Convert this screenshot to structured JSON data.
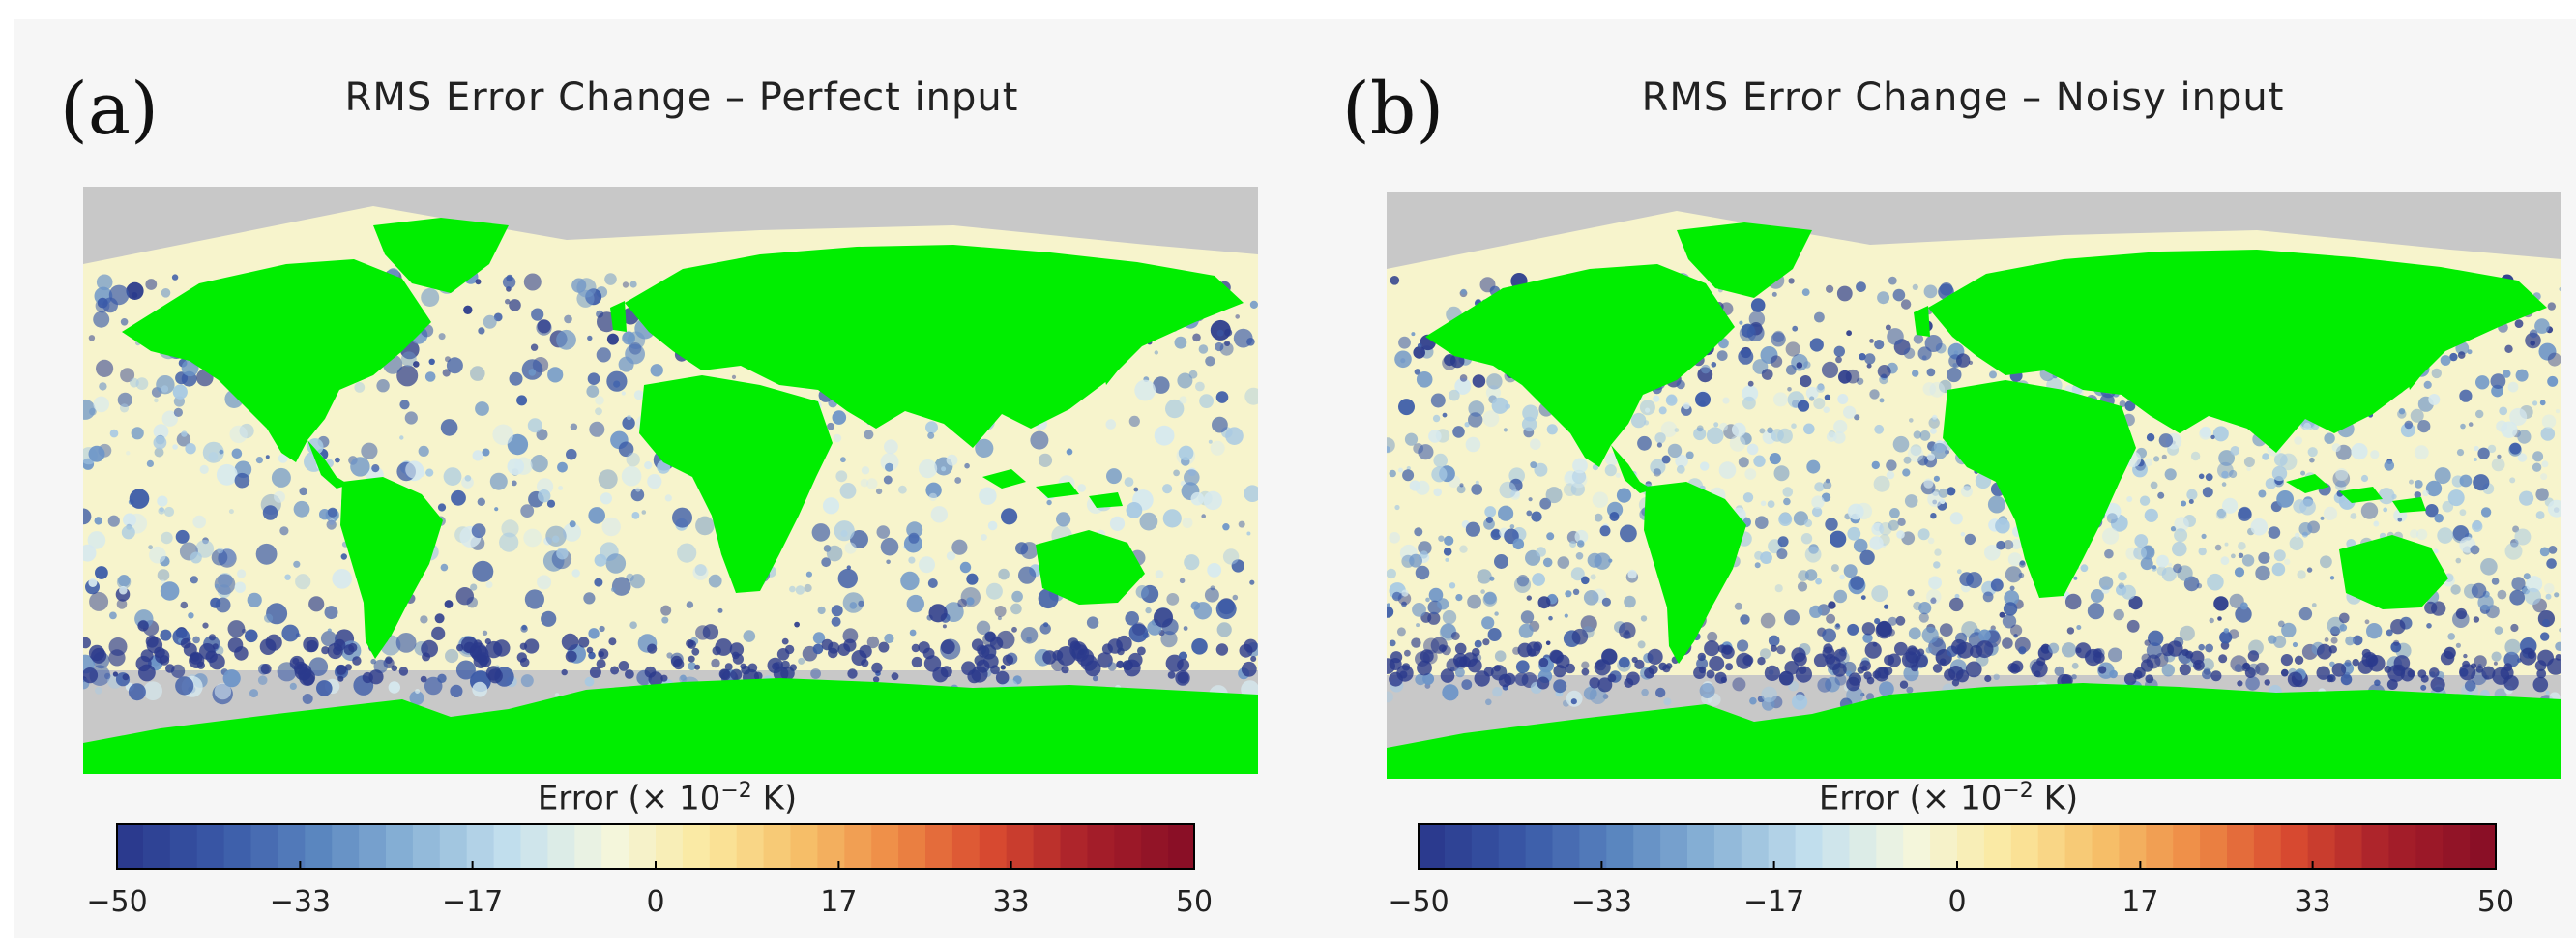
{
  "figure": {
    "panels": [
      {
        "letter": "(a)",
        "title": "RMS Error Change – Perfect input",
        "colorbar": {
          "label_prefix": "Error (× 10",
          "label_exp": "−2",
          "label_suffix": " K)",
          "ticks": [
            "−50",
            "−33",
            "−17",
            "0",
            "17",
            "33",
            "50"
          ],
          "tick_values": [
            -50,
            -33,
            -17,
            0,
            17,
            33,
            50
          ],
          "range": [
            -50,
            50
          ]
        }
      },
      {
        "letter": "(b)",
        "title": "RMS Error Change – Noisy input",
        "colorbar": {
          "label_prefix": "Error (× 10",
          "label_exp": "−2",
          "label_suffix": " K)",
          "ticks": [
            "−50",
            "−33",
            "−17",
            "0",
            "17",
            "33",
            "50"
          ],
          "tick_values": [
            -50,
            -33,
            -17,
            0,
            17,
            33,
            50
          ],
          "range": [
            -50,
            50
          ]
        }
      }
    ]
  },
  "colors": {
    "land": "#00ee00",
    "ice_nodata": "#c8c8c8",
    "ocean_neutral": "#f7f4cc",
    "strong_negative": "#2a3a8c",
    "colormap": [
      "#2b3a8e",
      "#3a5aa8",
      "#5b87c0",
      "#8db6d8",
      "#c4e0ee",
      "#f3f7e0",
      "#fbe9a0",
      "#f6c16a",
      "#ee8a45",
      "#d84a30",
      "#a81f2a",
      "#8a0f26"
    ]
  }
}
